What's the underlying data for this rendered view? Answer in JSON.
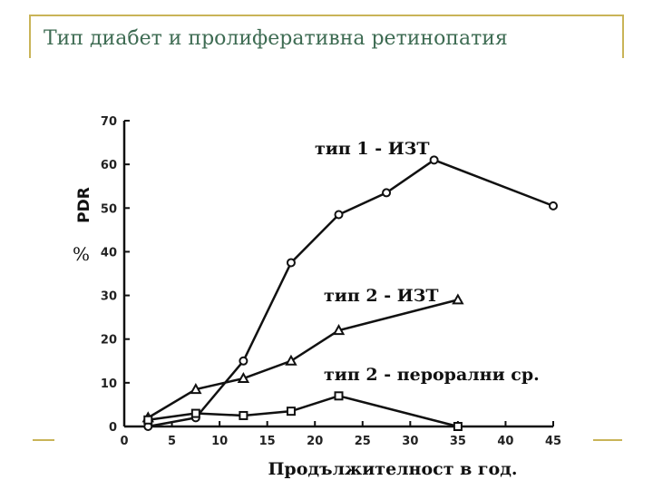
{
  "slide": {
    "title": "Тип диабет и пролиферативна ретинопатия"
  },
  "colors": {
    "frame": "#c9b458",
    "title": "#3d6b52",
    "ink": "#111111"
  },
  "chart_data": {
    "type": "line",
    "title": "",
    "xlabel": "Продължителност в год.",
    "ylabel": "PDR",
    "ylabel_unit": "%",
    "xlim": [
      0,
      45
    ],
    "ylim": [
      0,
      70
    ],
    "xticks": [
      0,
      5,
      10,
      15,
      20,
      25,
      30,
      35,
      40,
      45
    ],
    "yticks": [
      0,
      10,
      20,
      30,
      40,
      50,
      60,
      70
    ],
    "grid": false,
    "series": [
      {
        "name": "тип 1 - ИЗТ",
        "marker": "circle",
        "x": [
          2.5,
          7.5,
          12.5,
          17.5,
          22.5,
          27.5,
          32.5,
          45
        ],
        "y": [
          0,
          2,
          15,
          37.5,
          48.5,
          53.5,
          61,
          50.5
        ]
      },
      {
        "name": "тип 2 - ИЗТ",
        "marker": "triangle",
        "x": [
          2.5,
          7.5,
          12.5,
          17.5,
          22.5,
          35
        ],
        "y": [
          2,
          8.5,
          11,
          15,
          22,
          29
        ]
      },
      {
        "name": "тип 2 - перорални ср.",
        "marker": "square",
        "x": [
          2.5,
          7.5,
          12.5,
          17.5,
          22.5,
          35
        ],
        "y": [
          1.5,
          3,
          2.5,
          3.5,
          7,
          0
        ]
      }
    ]
  }
}
